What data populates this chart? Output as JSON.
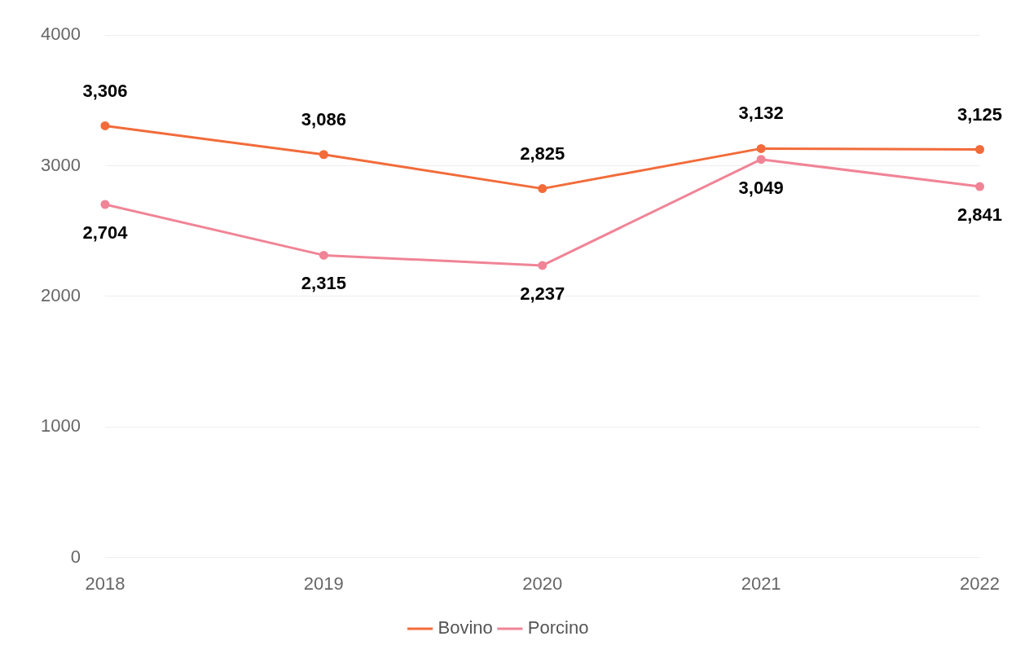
{
  "chart_data": {
    "type": "line",
    "categories": [
      "2018",
      "2019",
      "2020",
      "2021",
      "2022"
    ],
    "series": [
      {
        "name": "Bovino",
        "color": "#f26b3a",
        "values": [
          3306,
          3086,
          2825,
          3132,
          3125
        ],
        "value_labels": [
          "3,306",
          "3,086",
          "2,825",
          "3,132",
          "3,125"
        ]
      },
      {
        "name": "Porcino",
        "color": "#f08496",
        "values": [
          2704,
          2315,
          2237,
          3049,
          2841
        ],
        "value_labels": [
          "2,704",
          "2,315",
          "2,237",
          "3,049",
          "2,841"
        ]
      }
    ],
    "ylim": [
      0,
      4000
    ],
    "yticks": [
      0,
      1000,
      2000,
      3000,
      4000
    ],
    "grid": "y",
    "legend": "bottom",
    "marker": "circle",
    "line_style": "solid"
  }
}
